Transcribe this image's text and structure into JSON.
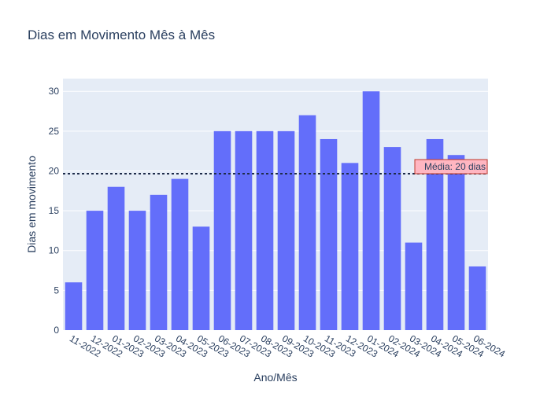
{
  "chart_data": {
    "type": "bar",
    "title": "Dias em Movimento Mês à Mês",
    "xlabel": "Ano/Mês",
    "ylabel": "Dias em movimento",
    "categories": [
      "11-2022",
      "12-2022",
      "01-2023",
      "02-2023",
      "03-2023",
      "04-2023",
      "05-2023",
      "06-2023",
      "07-2023",
      "08-2023",
      "09-2023",
      "10-2023",
      "11-2023",
      "12-2023",
      "01-2024",
      "02-2024",
      "03-2024",
      "04-2024",
      "05-2024",
      "06-2024"
    ],
    "values": [
      6,
      15,
      18,
      15,
      17,
      19,
      13,
      25,
      25,
      25,
      25,
      27,
      24,
      21,
      30,
      23,
      11,
      24,
      22,
      8
    ],
    "ylim": [
      0,
      31.6
    ],
    "yticks": [
      0,
      5,
      10,
      15,
      20,
      25,
      30
    ],
    "grid": true,
    "colors": {
      "bar": "#636efa",
      "plot_bg": "#e5ecf6",
      "grid": "#ffffff",
      "mean_line": "#1f2c4a",
      "annotation_bg": "#ffb6c1",
      "annotation_border": "#c0392b"
    },
    "mean_line": {
      "value": 19.65,
      "label": "Média: 20 dias"
    }
  }
}
